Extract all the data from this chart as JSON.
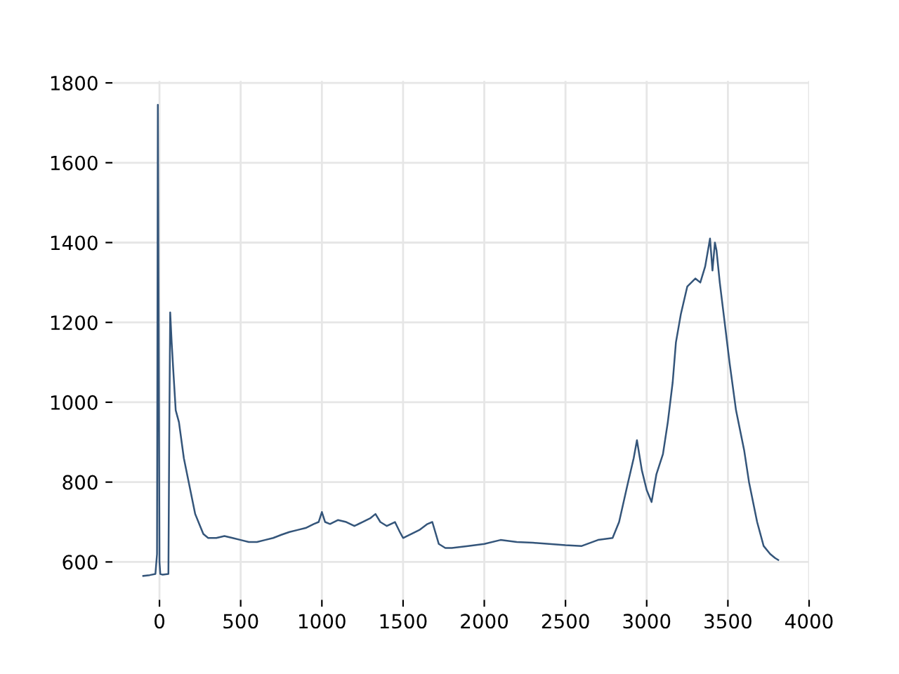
{
  "chart_data": {
    "type": "line",
    "x": [
      -100,
      -60,
      -25,
      -15,
      -10,
      -5,
      0,
      5,
      20,
      55,
      60,
      66,
      75,
      85,
      100,
      120,
      150,
      180,
      220,
      250,
      270,
      300,
      350,
      400,
      450,
      500,
      550,
      600,
      650,
      700,
      750,
      800,
      850,
      900,
      950,
      980,
      1000,
      1020,
      1050,
      1100,
      1150,
      1200,
      1250,
      1300,
      1330,
      1360,
      1400,
      1450,
      1480,
      1500,
      1550,
      1600,
      1650,
      1680,
      1720,
      1760,
      1800,
      1900,
      2000,
      2100,
      2200,
      2300,
      2400,
      2500,
      2600,
      2700,
      2790,
      2830,
      2880,
      2920,
      2940,
      2970,
      3000,
      3030,
      3060,
      3100,
      3130,
      3160,
      3180,
      3210,
      3250,
      3300,
      3330,
      3360,
      3390,
      3405,
      3420,
      3430,
      3450,
      3480,
      3510,
      3550,
      3600,
      3630,
      3680,
      3720,
      3760,
      3790,
      3810
    ],
    "series": [
      {
        "color": "#34557a",
        "values": [
          565,
          567,
          570,
          620,
          1745,
          1200,
          600,
          570,
          568,
          570,
          900,
          1225,
          1150,
          1080,
          980,
          950,
          860,
          800,
          720,
          690,
          670,
          660,
          660,
          665,
          660,
          655,
          650,
          650,
          655,
          660,
          668,
          675,
          680,
          685,
          695,
          700,
          725,
          700,
          695,
          705,
          700,
          690,
          700,
          710,
          720,
          700,
          690,
          700,
          675,
          660,
          670,
          680,
          695,
          700,
          645,
          635,
          635,
          640,
          645,
          655,
          650,
          648,
          645,
          642,
          640,
          655,
          660,
          700,
          790,
          860,
          905,
          830,
          780,
          750,
          820,
          870,
          950,
          1050,
          1150,
          1220,
          1290,
          1310,
          1300,
          1340,
          1410,
          1330,
          1400,
          1380,
          1300,
          1200,
          1100,
          980,
          880,
          800,
          700,
          640,
          620,
          610,
          605
        ]
      }
    ],
    "xlim": [
      -290,
      4000
    ],
    "ylim": [
      505,
      1805
    ],
    "xticks": [
      0,
      500,
      1000,
      1500,
      2000,
      2500,
      3000,
      3500,
      4000
    ],
    "yticks": [
      600,
      800,
      1000,
      1200,
      1400,
      1600,
      1800
    ],
    "grid": true,
    "legend": false,
    "marker": "none",
    "line_style": "solid"
  }
}
